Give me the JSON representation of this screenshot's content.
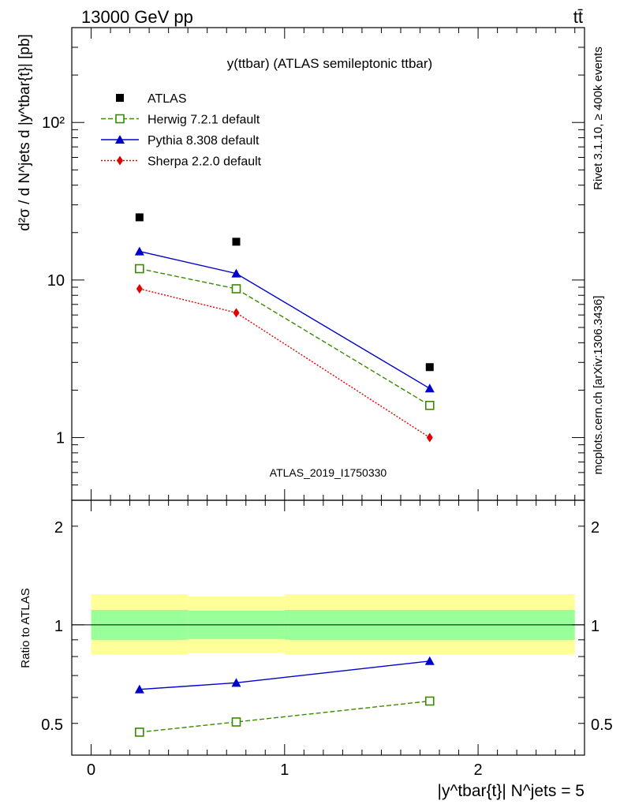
{
  "header": {
    "left": "13000 GeV pp",
    "right": "tt̄"
  },
  "side_labels": {
    "rivet": "Rivet 3.1.10, ≥ 400k events",
    "mcplots": "mcplots.cern.ch [arXiv:1306.3436]"
  },
  "chart_data": [
    {
      "type": "scatter",
      "title": "y(ttbar) (ATLAS semileptonic ttbar)",
      "watermark": "ATLAS_2019_I1750330",
      "ylabel": "d²σ / d N^jets d |y^tbar{t}| [pb]",
      "yscale": "log",
      "ylim": [
        0.4,
        400
      ],
      "xlim": [
        -0.1,
        2.55
      ],
      "yticks": [
        1,
        10,
        100
      ],
      "ytick_labels": [
        "1",
        "10",
        "10²"
      ],
      "legend_position": "top-left",
      "series": [
        {
          "name": "ATLAS",
          "color": "#000000",
          "marker": "filled-square",
          "line": "none",
          "x": [
            0.25,
            0.75,
            1.75
          ],
          "values": [
            25,
            17.5,
            2.8
          ]
        },
        {
          "name": "Herwig 7.2.1 default",
          "color": "#3a8a00",
          "marker": "open-square",
          "line": "dashed",
          "x": [
            0.25,
            0.75,
            1.75
          ],
          "values": [
            11.8,
            8.8,
            1.6
          ]
        },
        {
          "name": "Pythia 8.308 default",
          "color": "#0000cc",
          "marker": "filled-triangle",
          "line": "solid",
          "x": [
            0.25,
            0.75,
            1.75
          ],
          "values": [
            15.2,
            11.0,
            2.05
          ]
        },
        {
          "name": "Sherpa 2.2.0 default",
          "color": "#e00000",
          "marker": "filled-diamond",
          "line": "dotted",
          "x": [
            0.25,
            0.75,
            1.75
          ],
          "values": [
            8.8,
            6.2,
            1.0
          ]
        }
      ]
    },
    {
      "type": "line",
      "ylabel": "Ratio to ATLAS",
      "yscale": "log",
      "ylim": [
        0.4,
        2.4
      ],
      "xlim": [
        -0.1,
        2.55
      ],
      "yticks": [
        0.5,
        1,
        2
      ],
      "ytick_labels": [
        "0.5",
        "1",
        "2"
      ],
      "xticks": [
        0,
        1,
        2
      ],
      "xtick_labels": [
        "0",
        "1",
        "2"
      ],
      "xlabel": "|y^tbar{t}| N^jets = 5",
      "bands": [
        {
          "color": "#ffff99",
          "segments": [
            {
              "x0": 0,
              "x1": 0.5,
              "lo": 0.81,
              "hi": 1.24
            },
            {
              "x0": 0.5,
              "x1": 1.0,
              "lo": 0.82,
              "hi": 1.22
            },
            {
              "x0": 1.0,
              "x1": 2.5,
              "lo": 0.81,
              "hi": 1.24
            }
          ]
        },
        {
          "color": "#99ff99",
          "segments": [
            {
              "x0": 0,
              "x1": 0.5,
              "lo": 0.9,
              "hi": 1.11
            },
            {
              "x0": 0.5,
              "x1": 1.0,
              "lo": 0.905,
              "hi": 1.105
            },
            {
              "x0": 1.0,
              "x1": 2.5,
              "lo": 0.9,
              "hi": 1.11
            }
          ]
        }
      ],
      "series": [
        {
          "name": "Herwig 7.2.1 default",
          "color": "#3a8a00",
          "marker": "open-square",
          "line": "dashed",
          "x": [
            0.25,
            0.75,
            1.75
          ],
          "values": [
            0.47,
            0.505,
            0.585
          ]
        },
        {
          "name": "Pythia 8.308 default",
          "color": "#0000cc",
          "marker": "filled-triangle",
          "line": "solid",
          "x": [
            0.25,
            0.75,
            1.75
          ],
          "values": [
            0.635,
            0.665,
            0.775
          ]
        }
      ]
    }
  ]
}
